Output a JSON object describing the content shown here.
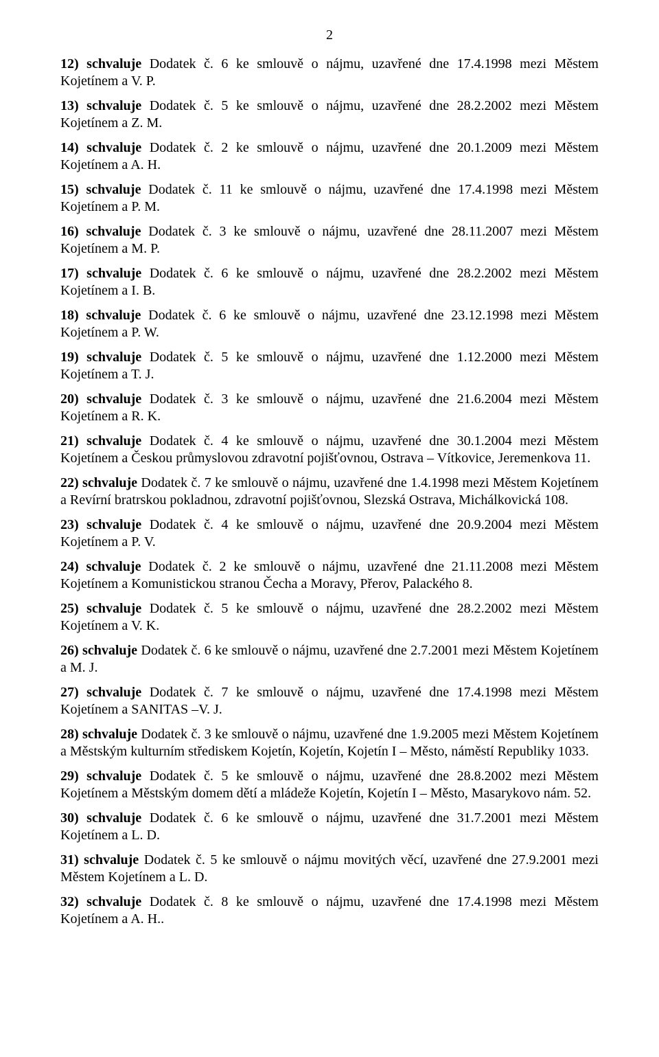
{
  "page_number": "2",
  "font": {
    "family": "Times New Roman",
    "size_pt": 15,
    "color": "#000000"
  },
  "background_color": "#ffffff",
  "items": [
    {
      "lead": "12) schvaluje",
      "body": " Dodatek č. 6 ke smlouvě o nájmu, uzavřené dne 17.4.1998 mezi Městem Kojetínem a V. P."
    },
    {
      "lead": "13) schvaluje",
      "body": " Dodatek č. 5 ke smlouvě o nájmu, uzavřené dne 28.2.2002 mezi Městem Kojetínem a Z. M."
    },
    {
      "lead": "14) schvaluje",
      "body": " Dodatek č. 2 ke smlouvě o nájmu, uzavřené dne 20.1.2009 mezi Městem Kojetínem a A. H."
    },
    {
      "lead": "15) schvaluje",
      "body": " Dodatek č. 11 ke smlouvě o nájmu, uzavřené dne 17.4.1998 mezi Městem Kojetínem a P. M."
    },
    {
      "lead": "16) schvaluje",
      "body": " Dodatek č. 3 ke smlouvě o nájmu, uzavřené dne 28.11.2007 mezi Městem Kojetínem a M. P."
    },
    {
      "lead": "17) schvaluje",
      "body": " Dodatek č. 6 ke smlouvě o nájmu, uzavřené dne 28.2.2002 mezi Městem Kojetínem a I. B."
    },
    {
      "lead": "18) schvaluje",
      "body": " Dodatek č. 6 ke smlouvě o nájmu, uzavřené dne 23.12.1998 mezi Městem Kojetínem a P. W."
    },
    {
      "lead": "19) schvaluje",
      "body": " Dodatek č. 5 ke smlouvě o nájmu, uzavřené dne 1.12.2000 mezi Městem Kojetínem a T. J."
    },
    {
      "lead": "20) schvaluje",
      "body": " Dodatek č. 3 ke smlouvě o nájmu, uzavřené dne 21.6.2004 mezi Městem Kojetínem a R. K."
    },
    {
      "lead": "21) schvaluje",
      "body": " Dodatek č. 4 ke smlouvě o nájmu, uzavřené dne 30.1.2004 mezi Městem Kojetínem a Českou průmyslovou zdravotní pojišťovnou, Ostrava – Vítkovice, Jeremenkova 11."
    },
    {
      "lead": "22) schvaluje",
      "body": " Dodatek č. 7 ke smlouvě o nájmu, uzavřené dne 1.4.1998 mezi Městem Kojetínem a Revírní bratrskou pokladnou, zdravotní pojišťovnou, Slezská Ostrava, Michálkovická 108."
    },
    {
      "lead": "23) schvaluje",
      "body": " Dodatek č. 4 ke smlouvě o nájmu, uzavřené dne 20.9.2004 mezi Městem Kojetínem a P. V."
    },
    {
      "lead": "24) schvaluje",
      "body": " Dodatek č. 2 ke smlouvě o nájmu, uzavřené dne 21.11.2008 mezi Městem Kojetínem a Komunistickou stranou Čecha a Moravy, Přerov, Palackého 8."
    },
    {
      "lead": "25) schvaluje",
      "body": " Dodatek č. 5 ke smlouvě o nájmu, uzavřené dne 28.2.2002 mezi Městem Kojetínem a V. K."
    },
    {
      "lead": "26) schvaluje",
      "body": " Dodatek č. 6 ke smlouvě o nájmu, uzavřené dne 2.7.2001 mezi Městem Kojetínem a M. J."
    },
    {
      "lead": "27) schvaluje",
      "body": " Dodatek č. 7 ke smlouvě o nájmu, uzavřené dne 17.4.1998 mezi Městem Kojetínem a SANITAS –V. J."
    },
    {
      "lead": "28) schvaluje",
      "body": " Dodatek č. 3 ke smlouvě o nájmu, uzavřené dne 1.9.2005 mezi Městem Kojetínem a Městským kulturním střediskem Kojetín, Kojetín, Kojetín I – Město, náměstí Republiky 1033."
    },
    {
      "lead": "29) schvaluje",
      "body": " Dodatek č. 5 ke smlouvě o nájmu, uzavřené dne 28.8.2002 mezi Městem Kojetínem a Městským domem dětí a mládeže Kojetín, Kojetín I – Město, Masarykovo nám. 52."
    },
    {
      "lead": "30) schvaluje",
      "body": " Dodatek č. 6 ke smlouvě o nájmu, uzavřené dne 31.7.2001 mezi Městem Kojetínem a L. D."
    },
    {
      "lead": "31) schvaluje",
      "body": " Dodatek č. 5 ke smlouvě o nájmu movitých věcí, uzavřené dne 27.9.2001 mezi Městem Kojetínem a L. D."
    },
    {
      "lead": "32) schvaluje",
      "body": " Dodatek č. 8 ke smlouvě o nájmu, uzavřené dne 17.4.1998 mezi Městem Kojetínem a A. H.."
    }
  ]
}
